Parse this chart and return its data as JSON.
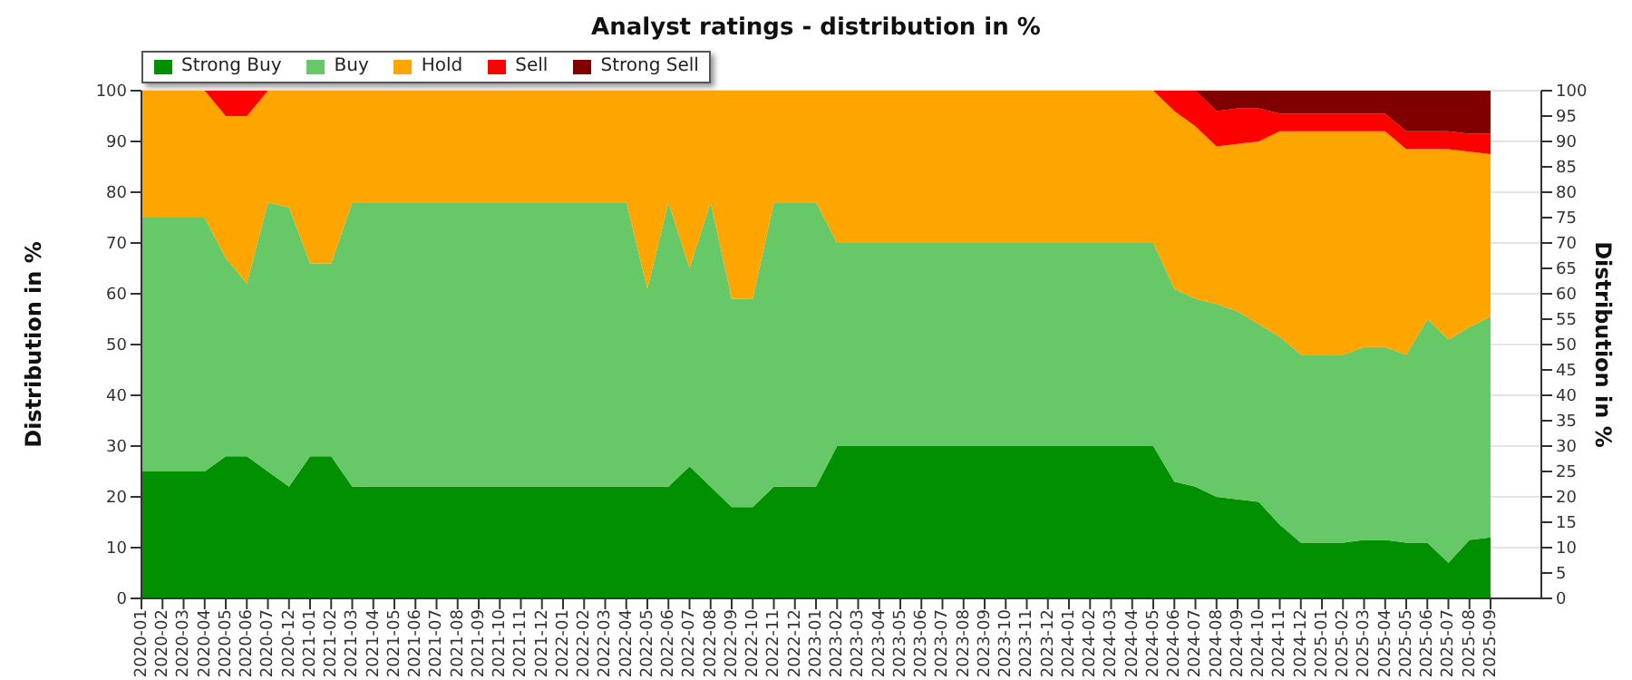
{
  "chart_data": {
    "type": "area",
    "title": "Analyst ratings - distribution in %",
    "ylabel": "Distribution in %",
    "y2label": "Distribution in %",
    "categories": [
      "2020-01",
      "2020-02",
      "2020-03",
      "2020-04",
      "2020-05",
      "2020-06",
      "2020-07",
      "2020-12",
      "2021-01",
      "2021-02",
      "2021-03",
      "2021-04",
      "2021-05",
      "2021-06",
      "2021-07",
      "2021-08",
      "2021-09",
      "2021-10",
      "2021-11",
      "2021-12",
      "2022-01",
      "2022-02",
      "2022-03",
      "2022-04",
      "2022-05",
      "2022-06",
      "2022-07",
      "2022-08",
      "2022-09",
      "2022-10",
      "2022-11",
      "2022-12",
      "2023-01",
      "2023-02",
      "2023-03",
      "2023-04",
      "2023-05",
      "2023-06",
      "2023-07",
      "2023-08",
      "2023-09",
      "2023-10",
      "2023-11",
      "2023-12",
      "2024-01",
      "2024-02",
      "2024-03",
      "2024-04",
      "2024-05",
      "2024-06",
      "2024-07",
      "2024-08",
      "2024-09",
      "2024-10",
      "2024-11",
      "2024-12",
      "2025-01",
      "2025-02",
      "2025-03",
      "2025-04",
      "2025-05",
      "2025-06",
      "2025-07",
      "2025-08",
      "2025-09"
    ],
    "stacked": true,
    "series": [
      {
        "name": "Strong Buy",
        "color": "#009000",
        "values": [
          25,
          25,
          25,
          25,
          28,
          28,
          25,
          22,
          28,
          28,
          22,
          22,
          22,
          22,
          22,
          22,
          22,
          22,
          22,
          22,
          22,
          22,
          22,
          22,
          22,
          22,
          26,
          22,
          18,
          18,
          22,
          22,
          22,
          30,
          30,
          30,
          30,
          30,
          30,
          30,
          30,
          30,
          30,
          30,
          30,
          30,
          30,
          30,
          30,
          23,
          22,
          20,
          19.5,
          19,
          14.5,
          11,
          11,
          11,
          11.5,
          11.5,
          11,
          11,
          7,
          11.5,
          12
        ]
      },
      {
        "name": "Buy",
        "color": "#66c866",
        "values": [
          50,
          50,
          50,
          50,
          39,
          34,
          53,
          55,
          38,
          38,
          56,
          56,
          56,
          56,
          56,
          56,
          56,
          56,
          56,
          56,
          56,
          56,
          56,
          56,
          39,
          56,
          39,
          56,
          41,
          41,
          56,
          56,
          56,
          40,
          40,
          40,
          40,
          40,
          40,
          40,
          40,
          40,
          40,
          40,
          40,
          40,
          40,
          40,
          40,
          38,
          37,
          38,
          37,
          35,
          37,
          37,
          37,
          37,
          38,
          38,
          37,
          44,
          44,
          42,
          43.5
        ]
      },
      {
        "name": "Hold",
        "color": "#ffa500",
        "values": [
          25,
          25,
          25,
          25,
          28,
          33,
          22,
          23,
          34,
          34,
          22,
          22,
          22,
          22,
          22,
          22,
          22,
          22,
          22,
          22,
          22,
          22,
          22,
          22,
          39,
          22,
          35,
          22,
          41,
          41,
          22,
          22,
          22,
          30,
          30,
          30,
          30,
          30,
          30,
          30,
          30,
          30,
          30,
          30,
          30,
          30,
          30,
          30,
          30,
          35,
          34,
          31,
          33,
          36,
          40.5,
          44,
          44,
          44,
          42.5,
          42.5,
          40.5,
          33.5,
          37.5,
          34.5,
          32
        ]
      },
      {
        "name": "Sell",
        "color": "#ff0000",
        "values": [
          0,
          0,
          0,
          0,
          5,
          5,
          0,
          0,
          0,
          0,
          0,
          0,
          0,
          0,
          0,
          0,
          0,
          0,
          0,
          0,
          0,
          0,
          0,
          0,
          0,
          0,
          0,
          0,
          0,
          0,
          0,
          0,
          0,
          0,
          0,
          0,
          0,
          0,
          0,
          0,
          0,
          0,
          0,
          0,
          0,
          0,
          0,
          0,
          0,
          4,
          7,
          7,
          7,
          6.5,
          3.5,
          3.5,
          3.5,
          3.5,
          3.5,
          3.5,
          3.5,
          3.5,
          3.5,
          3.5,
          4
        ]
      },
      {
        "name": "Strong Sell",
        "color": "#800000",
        "values": [
          0,
          0,
          0,
          0,
          0,
          0,
          0,
          0,
          0,
          0,
          0,
          0,
          0,
          0,
          0,
          0,
          0,
          0,
          0,
          0,
          0,
          0,
          0,
          0,
          0,
          0,
          0,
          0,
          0,
          0,
          0,
          0,
          0,
          0,
          0,
          0,
          0,
          0,
          0,
          0,
          0,
          0,
          0,
          0,
          0,
          0,
          0,
          0,
          0,
          0,
          0,
          4,
          3.5,
          3.5,
          4.5,
          4.5,
          4.5,
          4.5,
          4.5,
          4.5,
          8,
          8,
          8,
          8.5,
          8.5
        ]
      }
    ],
    "ylim": [
      0,
      100
    ],
    "yticks": [
      0,
      10,
      20,
      30,
      40,
      50,
      60,
      70,
      80,
      90,
      100
    ],
    "y2lim": [
      0,
      100
    ],
    "y2ticks": [
      0,
      5,
      10,
      15,
      20,
      25,
      30,
      35,
      40,
      45,
      50,
      55,
      60,
      65,
      70,
      75,
      80,
      85,
      90,
      95,
      100
    ],
    "grid": "y",
    "legend": "top left"
  }
}
